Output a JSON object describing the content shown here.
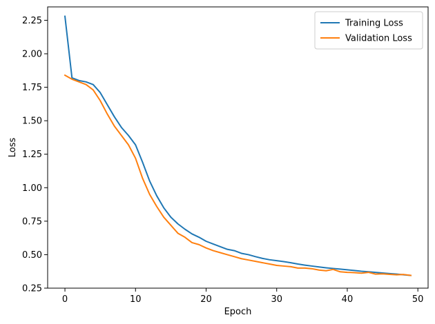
{
  "chart_data": {
    "type": "line",
    "title": "",
    "xlabel": "Epoch",
    "ylabel": "Loss",
    "xlim": [
      -2.45,
      51.45
    ],
    "ylim": [
      0.25,
      2.35
    ],
    "xticks": [
      0,
      10,
      20,
      30,
      40,
      50
    ],
    "yticks": [
      0.25,
      0.5,
      0.75,
      1.0,
      1.25,
      1.5,
      1.75,
      2.0,
      2.25
    ],
    "ytick_labels": [
      "0.25",
      "0.50",
      "0.75",
      "1.00",
      "1.25",
      "1.50",
      "1.75",
      "2.00",
      "2.25"
    ],
    "grid": false,
    "legend_position": "top-right",
    "x": [
      0,
      1,
      2,
      3,
      4,
      5,
      6,
      7,
      8,
      9,
      10,
      11,
      12,
      13,
      14,
      15,
      16,
      17,
      18,
      19,
      20,
      21,
      22,
      23,
      24,
      25,
      26,
      27,
      28,
      29,
      30,
      31,
      32,
      33,
      34,
      35,
      36,
      37,
      38,
      39,
      40,
      41,
      42,
      43,
      44,
      45,
      46,
      47,
      48,
      49
    ],
    "series": [
      {
        "name": "Training Loss",
        "color": "#1f77b4",
        "values": [
          2.28,
          1.82,
          1.8,
          1.79,
          1.77,
          1.71,
          1.62,
          1.53,
          1.45,
          1.39,
          1.32,
          1.19,
          1.05,
          0.94,
          0.85,
          0.78,
          0.73,
          0.69,
          0.655,
          0.63,
          0.6,
          0.58,
          0.56,
          0.54,
          0.53,
          0.51,
          0.5,
          0.485,
          0.472,
          0.462,
          0.455,
          0.448,
          0.44,
          0.43,
          0.422,
          0.415,
          0.408,
          0.402,
          0.397,
          0.392,
          0.387,
          0.382,
          0.376,
          0.372,
          0.368,
          0.363,
          0.359,
          0.355,
          0.35,
          0.345
        ]
      },
      {
        "name": "Validation Loss",
        "color": "#ff7f0e",
        "values": [
          1.84,
          1.81,
          1.79,
          1.77,
          1.73,
          1.65,
          1.55,
          1.46,
          1.39,
          1.32,
          1.22,
          1.07,
          0.95,
          0.86,
          0.78,
          0.72,
          0.66,
          0.63,
          0.59,
          0.575,
          0.55,
          0.53,
          0.515,
          0.5,
          0.485,
          0.47,
          0.46,
          0.45,
          0.44,
          0.43,
          0.42,
          0.415,
          0.41,
          0.4,
          0.4,
          0.395,
          0.385,
          0.38,
          0.39,
          0.372,
          0.368,
          0.366,
          0.362,
          0.368,
          0.355,
          0.357,
          0.353,
          0.35,
          0.352,
          0.345
        ]
      }
    ]
  }
}
